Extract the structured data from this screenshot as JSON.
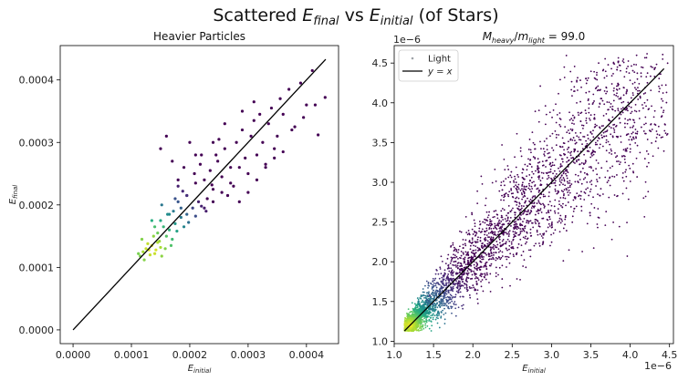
{
  "figure": {
    "title_prefix": "Scattered ",
    "title_var1": "E",
    "title_sub1": "final",
    "title_mid": " vs ",
    "title_var2": "E",
    "title_sub2": "initial",
    "title_suffix": " (of Stars)"
  },
  "chart_data": [
    {
      "type": "scatter",
      "title": "Heavier Particles",
      "xlabel": {
        "var": "E",
        "sub": "initial"
      },
      "ylabel": {
        "var": "E",
        "sub": "final"
      },
      "xlim": [
        -2.2e-05,
        0.000455
      ],
      "ylim": [
        -2.2e-05,
        0.000455
      ],
      "xticks": [
        0.0,
        0.0001,
        0.0002,
        0.0003,
        0.0004
      ],
      "xtick_labels": [
        "0.0000",
        "0.0001",
        "0.0002",
        "0.0003",
        "0.0004"
      ],
      "yticks": [
        0.0,
        0.0001,
        0.0002,
        0.0003,
        0.0004
      ],
      "ytick_labels": [
        "0.0000",
        "0.0001",
        "0.0002",
        "0.0003",
        "0.0004"
      ],
      "reference_line": {
        "x": [
          0.0,
          0.000433
        ],
        "y": [
          0.0,
          0.000433
        ],
        "color": "#000000"
      },
      "point_colormap": "viridis",
      "points": {
        "x": [
          0.000115,
          0.00012,
          0.000125,
          0.00013,
          0.000135,
          0.00014,
          0.000145,
          0.00015,
          0.000118,
          0.000128,
          0.000138,
          0.000148,
          0.000158,
          0.000122,
          0.000132,
          0.000142,
          0.000152,
          0.000112,
          0.00016,
          0.000165,
          0.00017,
          0.000175,
          0.000155,
          0.000145,
          0.000135,
          0.000168,
          0.000178,
          0.000185,
          0.00019,
          0.000172,
          0.000162,
          0.000152,
          0.000198,
          0.000205,
          0.000195,
          0.00021,
          0.000215,
          0.000188,
          0.00018,
          0.00022,
          0.000225,
          0.00023,
          0.000235,
          0.00024,
          0.000208,
          0.000218,
          0.000228,
          0.000238,
          0.000248,
          0.000255,
          0.00026,
          0.000265,
          0.00027,
          0.000245,
          0.00025,
          0.000275,
          0.00028,
          0.000285,
          0.00029,
          0.000295,
          0.0003,
          0.000305,
          0.00031,
          0.000315,
          0.00032,
          0.000325,
          0.00033,
          0.000335,
          0.00034,
          0.000345,
          0.00035,
          0.000355,
          0.00036,
          0.00037,
          0.00038,
          0.00039,
          0.0004,
          0.00041,
          0.00042,
          0.000432,
          0.00015,
          0.00016,
          0.00017,
          0.00018,
          0.00019,
          0.0002,
          0.00021,
          0.000175,
          0.000185,
          0.000195,
          0.00014,
          0.00015,
          0.000165,
          0.00018,
          0.000195,
          0.00021,
          0.000225,
          0.00024,
          0.000255,
          0.00027,
          0.000285,
          0.0003,
          0.000315,
          0.00033,
          0.000345,
          0.00036,
          0.000375,
          0.000395,
          0.000415,
          0.00029,
          0.00031,
          0.00026,
          0.00024,
          0.00022
        ],
        "y": [
          0.000118,
          0.000125,
          0.00013,
          0.000128,
          0.000135,
          0.000122,
          0.00014,
          0.000132,
          0.000145,
          0.000138,
          0.00015,
          0.000142,
          0.00013,
          0.000112,
          0.00012,
          0.000128,
          0.000118,
          0.000122,
          0.00015,
          0.00016,
          0.000145,
          0.00017,
          0.000165,
          0.000155,
          0.000175,
          0.000135,
          0.000158,
          0.00018,
          0.000165,
          0.00019,
          0.000185,
          0.0002,
          0.000172,
          0.000195,
          0.000215,
          0.000182,
          0.000205,
          0.000222,
          0.00023,
          0.000198,
          0.00024,
          0.00021,
          0.000255,
          0.000225,
          0.00025,
          0.000265,
          0.00019,
          0.000232,
          0.00027,
          0.000245,
          0.00029,
          0.000215,
          0.00026,
          0.00028,
          0.000305,
          0.00023,
          0.0003,
          0.00026,
          0.00032,
          0.000275,
          0.00025,
          0.00031,
          0.000335,
          0.00028,
          0.000345,
          0.0003,
          0.000265,
          0.00033,
          0.000355,
          0.00029,
          0.00031,
          0.00037,
          0.000345,
          0.000385,
          0.000325,
          0.000395,
          0.00036,
          0.000415,
          0.000312,
          0.000372,
          0.00029,
          0.00031,
          0.00027,
          0.00024,
          0.00026,
          0.0003,
          0.00028,
          0.00021,
          0.000195,
          0.000185,
          0.000165,
          0.000175,
          0.000185,
          0.000205,
          0.000215,
          0.000235,
          0.000195,
          0.000205,
          0.00022,
          0.000235,
          0.000205,
          0.00022,
          0.00024,
          0.00026,
          0.000275,
          0.000285,
          0.00032,
          0.00034,
          0.00036,
          0.00035,
          0.000365,
          0.00033,
          0.0003,
          0.00028
        ]
      }
    },
    {
      "type": "scatter",
      "title": {
        "var1": "M",
        "sub1": "heavy",
        "slash": "/",
        "var2": "m",
        "sub2": "light",
        "eq": " = 99.0"
      },
      "xlabel": {
        "var": "E",
        "sub": "initial"
      },
      "x_offset_label": "1e−6",
      "y_offset_label": "1e−6",
      "xlim": [
        1.0,
        4.55
      ],
      "ylim": [
        0.97,
        4.72
      ],
      "xticks": [
        1.0,
        1.5,
        2.0,
        2.5,
        3.0,
        3.5,
        4.0,
        4.5
      ],
      "xtick_labels": [
        "1.0",
        "1.5",
        "2.0",
        "2.5",
        "3.0",
        "3.5",
        "4.0",
        "4.5"
      ],
      "yticks": [
        1.0,
        1.5,
        2.0,
        2.5,
        3.0,
        3.5,
        4.0,
        4.5
      ],
      "ytick_labels": [
        "1.0",
        "1.5",
        "2.0",
        "2.5",
        "3.0",
        "3.5",
        "4.0",
        "4.5"
      ],
      "reference_line": {
        "name": "y = x",
        "x": [
          1.13,
          4.43
        ],
        "y": [
          1.13,
          4.43
        ],
        "color": "#000000"
      },
      "point_colormap": "viridis",
      "legend": {
        "position": "upper left",
        "entries": [
          {
            "label": "Light",
            "marker": "point"
          },
          {
            "label": "y = x",
            "marker": "line"
          }
        ]
      },
      "density_description": "dense cloud along y = x, densest near (1.2, 1.2)"
    }
  ]
}
